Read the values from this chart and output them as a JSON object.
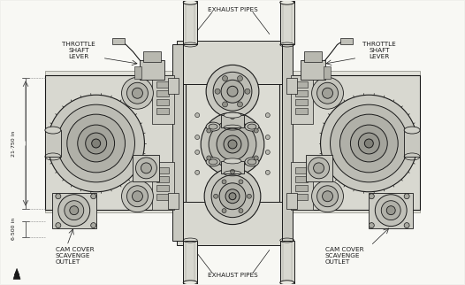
{
  "bg_color": "#f0f0ec",
  "line_color": "#1a1a1a",
  "text_color": "#1a1a1a",
  "gray_light": "#c8c8c0",
  "gray_mid": "#a0a098",
  "gray_dark": "#707068",
  "labels": {
    "exhaust_pipes_top": "EXHAUST PIPES",
    "exhaust_pipes_bottom": "EXHAUST PIPES",
    "throttle_left": "THROTTLE\nSHAFT\nLEVER",
    "throttle_right": "THROTTLE\nSHAFT\nLEVER",
    "cam_left": "CAM COVER\nSCAVENGE\nOUTLET",
    "cam_right": "CAM COVER\nSCAVENGE\nOUTLET",
    "dim_width": "21·750 in",
    "dim_height": "6·500 in"
  },
  "figsize": [
    5.26,
    3.22
  ],
  "dpi": 100
}
